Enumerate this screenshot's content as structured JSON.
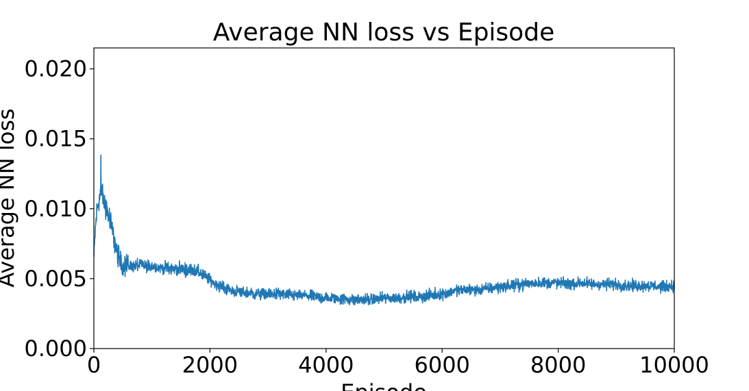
{
  "chart_data": {
    "type": "line",
    "title": "Average NN loss vs Episode",
    "xlabel": "Episode",
    "ylabel": "Average NN loss",
    "xlim": [
      0,
      10000
    ],
    "ylim": [
      0,
      0.0215
    ],
    "xticks": [
      0,
      2000,
      4000,
      6000,
      8000,
      10000
    ],
    "xtick_labels": [
      "0",
      "2000",
      "4000",
      "6000",
      "8000",
      "10000"
    ],
    "yticks": [
      0,
      0.005,
      0.01,
      0.015,
      0.02
    ],
    "ytick_labels": [
      "0.000",
      "0.005",
      "0.010",
      "0.015",
      "0.020"
    ],
    "grid": false,
    "legend": "none",
    "series": [
      {
        "color": "#1f77b4",
        "noise": 0.0006,
        "x": [
          0,
          25,
          50,
          75,
          100,
          125,
          150,
          175,
          200,
          250,
          300,
          350,
          400,
          450,
          500,
          600,
          700,
          800,
          900,
          1000,
          1100,
          1200,
          1300,
          1400,
          1500,
          1600,
          1700,
          1800,
          1900,
          2000,
          2100,
          2200,
          2400,
          2600,
          2800,
          3000,
          3200,
          3400,
          3600,
          3800,
          4000,
          4200,
          4400,
          4600,
          4800,
          5000,
          5200,
          5400,
          5600,
          5800,
          6000,
          6200,
          6400,
          6600,
          6800,
          7000,
          7200,
          7400,
          7600,
          7800,
          8000,
          8200,
          8400,
          8600,
          8800,
          9000,
          9200,
          9400,
          9600,
          9800,
          10000
        ],
        "y": [
          0.0065,
          0.0085,
          0.0098,
          0.0104,
          0.0108,
          0.0112,
          0.011,
          0.0105,
          0.0102,
          0.0095,
          0.0088,
          0.0078,
          0.0069,
          0.0063,
          0.006,
          0.0059,
          0.0059,
          0.006,
          0.0059,
          0.0059,
          0.0058,
          0.0058,
          0.0057,
          0.0057,
          0.0057,
          0.0056,
          0.0056,
          0.0055,
          0.0052,
          0.0049,
          0.0046,
          0.0044,
          0.0041,
          0.004,
          0.0039,
          0.0039,
          0.0039,
          0.0038,
          0.0038,
          0.0037,
          0.0036,
          0.0036,
          0.0035,
          0.0035,
          0.0035,
          0.0036,
          0.0036,
          0.0037,
          0.0037,
          0.0038,
          0.0039,
          0.0041,
          0.0042,
          0.0042,
          0.0043,
          0.0044,
          0.0045,
          0.0046,
          0.0047,
          0.0047,
          0.0047,
          0.0046,
          0.0047,
          0.0046,
          0.0046,
          0.0046,
          0.0045,
          0.0045,
          0.0045,
          0.0044,
          0.0045
        ]
      }
    ]
  }
}
